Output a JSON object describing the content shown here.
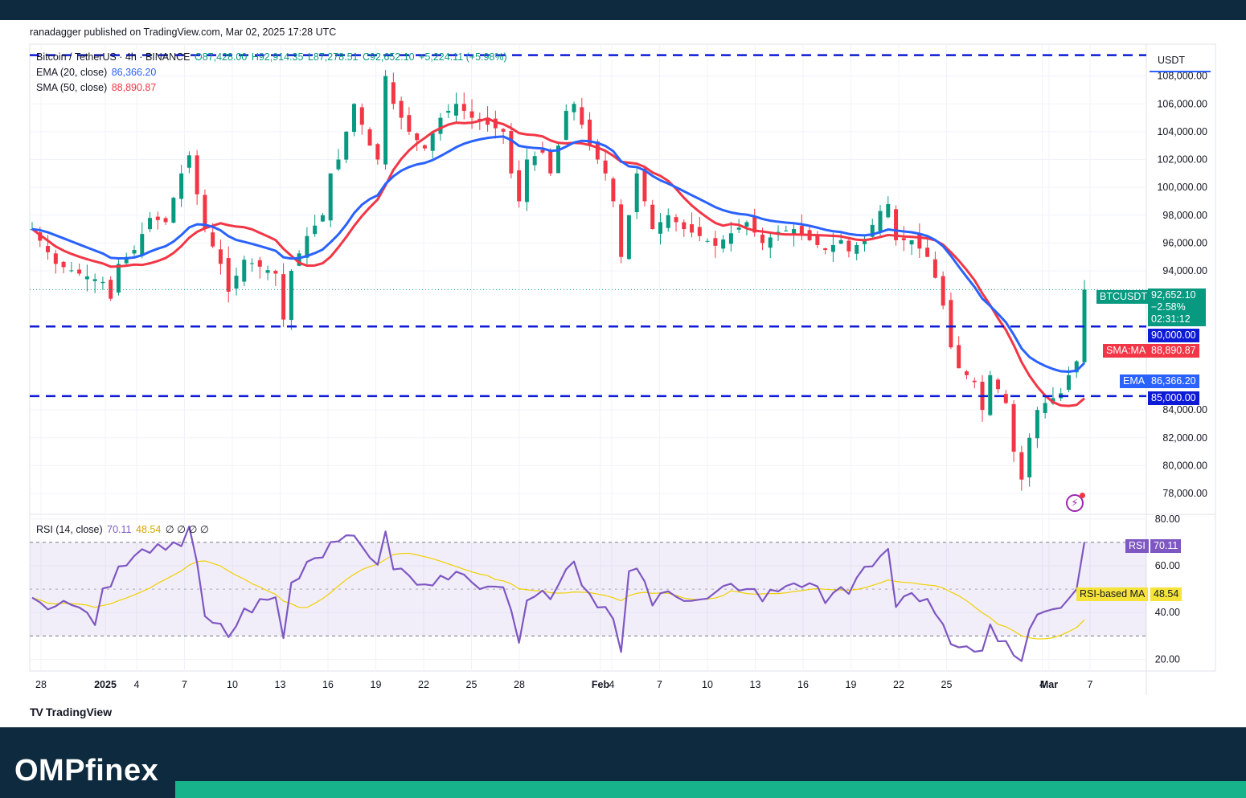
{
  "header": {
    "published": "ranadagger published on TradingView.com, Mar 02, 2025 17:28 UTC"
  },
  "legend": {
    "symbol": "Bitcoin / TetherUS · 4h · BINANCE",
    "open": "O87,428.00",
    "high": "H92,914.35",
    "low": "L87,278.51",
    "close": "C92,652.10",
    "change": "+5,224.11 (+5.98%)",
    "ema_label": "EMA (20, close)",
    "ema_value": "86,366.20",
    "sma_label": "SMA (50, close)",
    "sma_value": "88,890.87",
    "rsi_label": "RSI (14, close)",
    "rsi_value": "70.11",
    "rsi_ma_value": "48.54",
    "rsi_extra": "∅ ∅ ∅ ∅"
  },
  "currency": "USDT",
  "price_tags": {
    "btc_label": "BTCUSDT",
    "btc_price": "92,652.10",
    "btc_change": "−2.58%",
    "btc_timer": "02:31:12",
    "level_90k": "90,000.00",
    "sma_label": "SMA:MA",
    "sma_price": "88,890.87",
    "ema_label": "EMA",
    "ema_price": "86,366.20",
    "level_85k": "85,000.00",
    "rsi_label": "RSI",
    "rsi_value": "70.11",
    "rsi_ma_label": "RSI-based MA",
    "rsi_ma_value": "48.54"
  },
  "colors": {
    "up": "#089981",
    "down": "#f23645",
    "ema": "#2962ff",
    "sma": "#f23645",
    "rsi": "#7e57c2",
    "rsi_ma": "#f0d000",
    "levels": "#0d1bd6",
    "brand_bar": "#17b48b",
    "dark": "#0e2a3e"
  },
  "chart_data": [
    {
      "type": "candlestick",
      "title": "Bitcoin / TetherUS · 4h · BINANCE",
      "ylim": [
        76500,
        110000
      ],
      "y_ticks": [
        "108,000.00",
        "106,000.00",
        "104,000.00",
        "102,000.00",
        "100,000.00",
        "98,000.00",
        "96,000.00",
        "94,000.00",
        "84,000.00",
        "82,000.00",
        "80,000.00",
        "78,000.00"
      ],
      "x_ticks": [
        "28",
        "2025",
        "4",
        "7",
        "10",
        "13",
        "16",
        "19",
        "22",
        "25",
        "28",
        "Feb",
        "4",
        "7",
        "10",
        "13",
        "16",
        "19",
        "22",
        "25",
        "Mar",
        "4",
        "7"
      ],
      "horizontal_levels": [
        109500,
        90000,
        85000
      ],
      "price_path": [
        [
          0,
          97000
        ],
        [
          3,
          94500
        ],
        [
          6,
          93800
        ],
        [
          9,
          93200
        ],
        [
          10,
          92000
        ],
        [
          11,
          94500
        ],
        [
          13,
          95500
        ],
        [
          15,
          97800
        ],
        [
          17,
          97500
        ],
        [
          19,
          101000
        ],
        [
          20,
          102300
        ],
        [
          21,
          99500
        ],
        [
          22,
          97000
        ],
        [
          24,
          94500
        ],
        [
          25,
          92500
        ],
        [
          27,
          94800
        ],
        [
          29,
          94300
        ],
        [
          31,
          93800
        ],
        [
          32,
          90500
        ],
        [
          33,
          94000
        ],
        [
          35,
          96500
        ],
        [
          37,
          98000
        ],
        [
          38,
          101000
        ],
        [
          39,
          102000
        ],
        [
          40,
          104000
        ],
        [
          41,
          106000
        ],
        [
          43,
          103000
        ],
        [
          44,
          102000
        ],
        [
          45,
          108000
        ],
        [
          46,
          106000
        ],
        [
          48,
          104000
        ],
        [
          50,
          102800
        ],
        [
          52,
          105000
        ],
        [
          54,
          106000
        ],
        [
          56,
          105000
        ],
        [
          58,
          104500
        ],
        [
          60,
          104000
        ],
        [
          61,
          101000
        ],
        [
          62,
          99000
        ],
        [
          63,
          102000
        ],
        [
          65,
          102500
        ],
        [
          66,
          101000
        ],
        [
          67,
          103000
        ],
        [
          68,
          105500
        ],
        [
          69,
          106000
        ],
        [
          70,
          104500
        ],
        [
          71,
          103000
        ],
        [
          73,
          101000
        ],
        [
          74,
          99000
        ],
        [
          75,
          95000
        ],
        [
          76,
          98000
        ],
        [
          77,
          101000
        ],
        [
          79,
          97000
        ],
        [
          81,
          98000
        ],
        [
          83,
          97000
        ],
        [
          85,
          96500
        ],
        [
          87,
          95800
        ],
        [
          89,
          96700
        ],
        [
          91,
          97500
        ],
        [
          93,
          96000
        ],
        [
          95,
          96800
        ],
        [
          97,
          97000
        ],
        [
          99,
          96200
        ],
        [
          101,
          95500
        ],
        [
          103,
          96200
        ],
        [
          104,
          95400
        ],
        [
          106,
          96300
        ],
        [
          108,
          98300
        ],
        [
          109,
          98800
        ],
        [
          110,
          96200
        ],
        [
          112,
          96200
        ],
        [
          114,
          95000
        ],
        [
          115,
          93500
        ],
        [
          116,
          91500
        ],
        [
          117,
          88500
        ],
        [
          118,
          87000
        ],
        [
          120,
          86000
        ],
        [
          121,
          84000
        ],
        [
          122,
          86500
        ],
        [
          124,
          84500
        ],
        [
          125,
          81000
        ],
        [
          126,
          79000
        ],
        [
          127,
          82000
        ],
        [
          128,
          84000
        ],
        [
          129,
          84500
        ],
        [
          131,
          85200
        ],
        [
          132,
          86500
        ],
        [
          133,
          87500
        ],
        [
          134,
          92652
        ]
      ],
      "ema20": {
        "label": "EMA (20, close)",
        "last": 86366.2
      },
      "sma50": {
        "label": "SMA (50, close)",
        "last": 88890.87
      }
    },
    {
      "type": "line",
      "title": "RSI (14, close)",
      "ylim": [
        15,
        82
      ],
      "y_ticks": [
        "80.00",
        "60.00",
        "40.00",
        "20.00"
      ],
      "band": [
        30,
        70
      ],
      "rsi_path": [
        [
          0,
          47
        ],
        [
          3,
          43
        ],
        [
          6,
          45
        ],
        [
          8,
          35
        ],
        [
          9,
          50
        ],
        [
          11,
          58
        ],
        [
          13,
          63
        ],
        [
          15,
          68
        ],
        [
          17,
          65
        ],
        [
          19,
          70
        ],
        [
          20,
          78
        ],
        [
          21,
          62
        ],
        [
          22,
          36
        ],
        [
          24,
          33
        ],
        [
          25,
          30
        ],
        [
          27,
          40
        ],
        [
          29,
          44
        ],
        [
          31,
          46
        ],
        [
          32,
          30
        ],
        [
          33,
          52
        ],
        [
          35,
          62
        ],
        [
          37,
          66
        ],
        [
          38,
          70
        ],
        [
          39,
          72
        ],
        [
          40,
          76
        ],
        [
          41,
          70
        ],
        [
          43,
          65
        ],
        [
          44,
          62
        ],
        [
          45,
          72
        ],
        [
          46,
          60
        ],
        [
          48,
          55
        ],
        [
          50,
          50
        ],
        [
          52,
          58
        ],
        [
          54,
          56
        ],
        [
          56,
          52
        ],
        [
          58,
          54
        ],
        [
          60,
          52
        ],
        [
          61,
          38
        ],
        [
          62,
          30
        ],
        [
          63,
          48
        ],
        [
          65,
          49
        ],
        [
          66,
          45
        ],
        [
          67,
          54
        ],
        [
          68,
          60
        ],
        [
          69,
          62
        ],
        [
          70,
          54
        ],
        [
          71,
          48
        ],
        [
          73,
          42
        ],
        [
          74,
          36
        ],
        [
          75,
          22
        ],
        [
          76,
          55
        ],
        [
          77,
          60
        ],
        [
          79,
          42
        ],
        [
          81,
          52
        ],
        [
          83,
          46
        ],
        [
          85,
          44
        ],
        [
          87,
          47
        ],
        [
          89,
          50
        ],
        [
          91,
          52
        ],
        [
          93,
          46
        ],
        [
          95,
          50
        ],
        [
          97,
          54
        ],
        [
          99,
          50
        ],
        [
          101,
          47
        ],
        [
          103,
          52
        ],
        [
          104,
          46
        ],
        [
          106,
          58
        ],
        [
          108,
          65
        ],
        [
          109,
          66
        ],
        [
          110,
          42
        ],
        [
          112,
          48
        ],
        [
          114,
          44
        ],
        [
          115,
          38
        ],
        [
          116,
          33
        ],
        [
          117,
          25
        ],
        [
          118,
          24
        ],
        [
          120,
          26
        ],
        [
          121,
          22
        ],
        [
          122,
          32
        ],
        [
          124,
          28
        ],
        [
          125,
          22
        ],
        [
          126,
          20
        ],
        [
          127,
          35
        ],
        [
          128,
          40
        ],
        [
          129,
          42
        ],
        [
          131,
          44
        ],
        [
          132,
          48
        ],
        [
          133,
          52
        ],
        [
          134,
          70.11
        ]
      ],
      "rsi_ma_last": 48.54
    }
  ],
  "footer": {
    "tv_logo": "TradingView",
    "brand": "OMPfinex"
  }
}
